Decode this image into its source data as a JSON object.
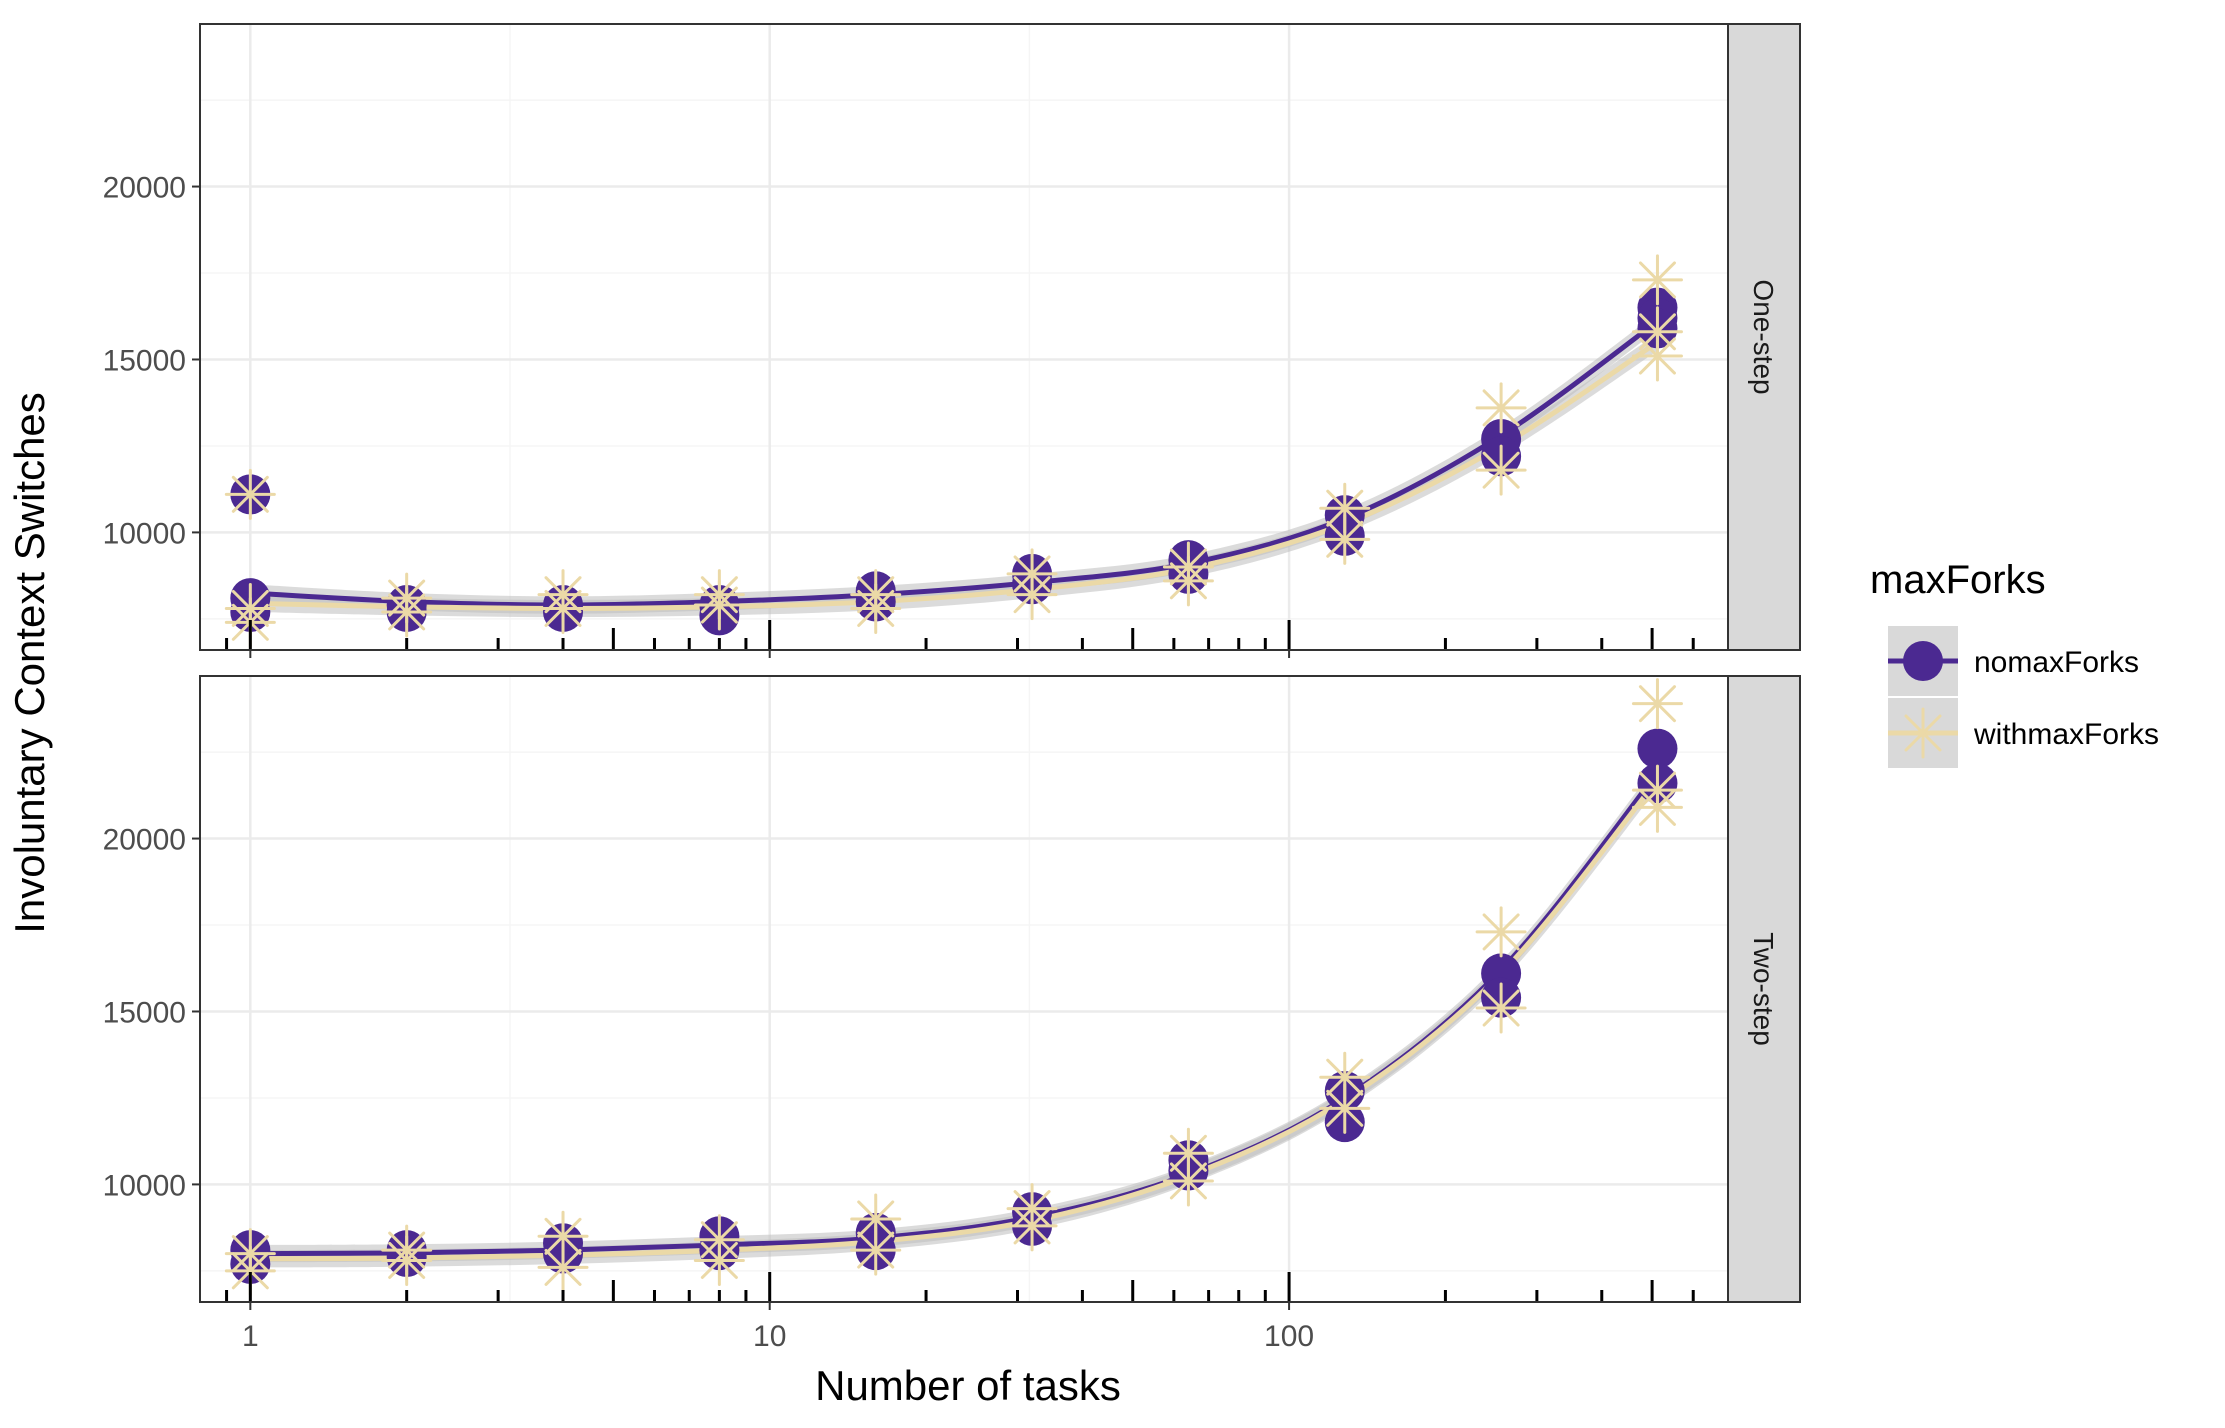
{
  "chart_data": {
    "type": "scatter",
    "xlabel": "Number of tasks",
    "ylabel": "Involuntary Context Switches",
    "x_scale": "log10",
    "xlim": [
      0.8,
      700
    ],
    "x_ticks": [
      1,
      10,
      100
    ],
    "x_tick_labels": [
      "1",
      "10",
      "100"
    ],
    "legend": {
      "title": "maxForks",
      "position": "right",
      "entries": [
        "nomaxForks",
        "withmaxForks"
      ]
    },
    "colors": {
      "nomaxForks": "#4b2991",
      "withmaxForks": "#ebd9a7",
      "ribbon": "#bebebe",
      "strip_bg": "#d9d9d9",
      "grid_major": "#ebebeb",
      "grid_minor": "#f5f5f5",
      "axis_text": "#4d4d4d",
      "panel_border": "#333333"
    },
    "panels": [
      {
        "strip": "One-step",
        "ylim": [
          6600,
          24700
        ],
        "y_ticks": [
          10000,
          15000,
          20000
        ],
        "y_tick_labels": [
          "10000",
          "15000",
          "20000"
        ],
        "series": [
          {
            "name": "nomaxForks",
            "points": [
              [
                1,
                11100
              ],
              [
                1,
                8100
              ],
              [
                1,
                7700
              ],
              [
                2,
                7900
              ],
              [
                2,
                7700
              ],
              [
                4,
                7900
              ],
              [
                4,
                7700
              ],
              [
                8,
                7900
              ],
              [
                8,
                7600
              ],
              [
                16,
                8300
              ],
              [
                16,
                8000
              ],
              [
                32,
                8800
              ],
              [
                32,
                8500
              ],
              [
                64,
                9200
              ],
              [
                64,
                8800
              ],
              [
                128,
                10500
              ],
              [
                128,
                9900
              ],
              [
                256,
                12700
              ],
              [
                256,
                12200
              ],
              [
                512,
                16500
              ],
              [
                512,
                16200
              ],
              [
                512,
                15900
              ]
            ],
            "fit": [
              [
                1,
                8250
              ],
              [
                2,
                8000
              ],
              [
                4,
                7900
              ],
              [
                8,
                8000
              ],
              [
                16,
                8200
              ],
              [
                32,
                8550
              ],
              [
                64,
                9100
              ],
              [
                128,
                10400
              ],
              [
                256,
                12800
              ],
              [
                512,
                16100
              ]
            ]
          },
          {
            "name": "withmaxForks",
            "points": [
              [
                1,
                11100
              ],
              [
                1,
                7800
              ],
              [
                1,
                7400
              ],
              [
                2,
                8100
              ],
              [
                2,
                7700
              ],
              [
                4,
                8200
              ],
              [
                4,
                7800
              ],
              [
                8,
                8200
              ],
              [
                8,
                7900
              ],
              [
                16,
                8200
              ],
              [
                16,
                7800
              ],
              [
                32,
                8800
              ],
              [
                32,
                8200
              ],
              [
                64,
                9000
              ],
              [
                64,
                8600
              ],
              [
                128,
                10700
              ],
              [
                128,
                9800
              ],
              [
                256,
                13600
              ],
              [
                256,
                11800
              ],
              [
                512,
                17300
              ],
              [
                512,
                15800
              ],
              [
                512,
                15100
              ]
            ],
            "fit": [
              [
                1,
                7950
              ],
              [
                2,
                7850
              ],
              [
                4,
                7800
              ],
              [
                8,
                7850
              ],
              [
                16,
                8000
              ],
              [
                32,
                8350
              ],
              [
                64,
                8950
              ],
              [
                128,
                10250
              ],
              [
                256,
                12500
              ],
              [
                512,
                15500
              ]
            ]
          }
        ]
      },
      {
        "strip": "Two-step",
        "ylim": [
          6600,
          24700
        ],
        "y_ticks": [
          10000,
          15000,
          20000
        ],
        "y_tick_labels": [
          "10000",
          "15000",
          "20000"
        ],
        "series": [
          {
            "name": "nomaxForks",
            "points": [
              [
                1,
                8100
              ],
              [
                1,
                7700
              ],
              [
                2,
                8100
              ],
              [
                2,
                7900
              ],
              [
                4,
                8300
              ],
              [
                4,
                8000
              ],
              [
                8,
                8500
              ],
              [
                8,
                8100
              ],
              [
                16,
                8600
              ],
              [
                16,
                8100
              ],
              [
                32,
                9200
              ],
              [
                32,
                8800
              ],
              [
                64,
                10700
              ],
              [
                64,
                10400
              ],
              [
                128,
                12700
              ],
              [
                128,
                11800
              ],
              [
                256,
                16100
              ],
              [
                256,
                15400
              ],
              [
                512,
                22600
              ],
              [
                512,
                21600
              ]
            ],
            "fit": [
              [
                1,
                8000
              ],
              [
                2,
                8020
              ],
              [
                4,
                8100
              ],
              [
                8,
                8250
              ],
              [
                16,
                8450
              ],
              [
                32,
                9050
              ],
              [
                64,
                10300
              ],
              [
                128,
                12500
              ],
              [
                256,
                16200
              ],
              [
                512,
                21900
              ]
            ]
          },
          {
            "name": "withmaxForks",
            "points": [
              [
                1,
                8000
              ],
              [
                1,
                7500
              ],
              [
                2,
                8100
              ],
              [
                2,
                7800
              ],
              [
                4,
                8500
              ],
              [
                4,
                7600
              ],
              [
                8,
                8400
              ],
              [
                8,
                7800
              ],
              [
                16,
                9000
              ],
              [
                16,
                8100
              ],
              [
                32,
                9300
              ],
              [
                32,
                8800
              ],
              [
                64,
                10900
              ],
              [
                64,
                10100
              ],
              [
                128,
                13100
              ],
              [
                128,
                12200
              ],
              [
                256,
                17300
              ],
              [
                256,
                15100
              ],
              [
                512,
                23900
              ],
              [
                512,
                21400
              ],
              [
                512,
                20900
              ]
            ],
            "fit": [
              [
                1,
                7850
              ],
              [
                2,
                7870
              ],
              [
                4,
                7950
              ],
              [
                8,
                8100
              ],
              [
                16,
                8350
              ],
              [
                32,
                8950
              ],
              [
                64,
                10250
              ],
              [
                128,
                12450
              ],
              [
                256,
                16100
              ],
              [
                512,
                21700
              ]
            ]
          }
        ]
      }
    ]
  }
}
